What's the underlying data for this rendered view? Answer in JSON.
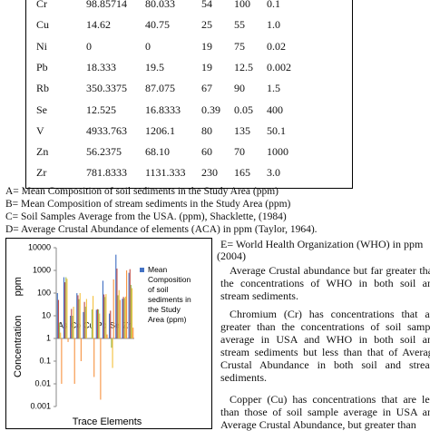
{
  "table": {
    "rows": [
      [
        "Cr",
        "98.85714",
        "80.033",
        "54",
        "100",
        "0.1"
      ],
      [
        "Cu",
        "14.62",
        "40.75",
        "25",
        "55",
        "1.0"
      ],
      [
        "Ni",
        "0",
        "0",
        "19",
        "75",
        "0.02"
      ],
      [
        "Pb",
        "18.333",
        "19.5",
        "19",
        "12.5",
        "0.002"
      ],
      [
        "Rb",
        "350.3375",
        "87.075",
        "67",
        "90",
        "1.5"
      ],
      [
        "Se",
        "12.525",
        "16.8333",
        "0.39",
        "0.05",
        "400"
      ],
      [
        "V",
        "4933.763",
        "1206.1",
        "80",
        "135",
        "50.1"
      ],
      [
        "Zn",
        "56.2375",
        "68.10",
        "60",
        "70",
        "1000"
      ],
      [
        "Zr",
        "781.8333",
        "1131.333",
        "230",
        "165",
        "3.0"
      ]
    ]
  },
  "captions": [
    "A= Mean Composition of soil sediments in the Study Area (ppm)",
    "B= Mean Composition of stream sediments in the Study Area (ppm)",
    "C= Soil Samples Average from the USA. (ppm), Shacklette, (1984)",
    "D= Average Crustal Abundance of elements (ACA) in ppm (Taylor, 1964)."
  ],
  "side_note": [
    "E= World Health Organization (WHO) in ppm",
    "(2004)"
  ],
  "paragraphs": [
    "Average Crustal abundance but far greater than the concentrations of WHO in both soil and stream sediments.",
    "Chromium (Cr) has concentrations that are greater than the concentrations of soil sample average in USA and WHO in both soil and stream sediments but less than that of Average Crustal Abundance in both soil and stream sediments.",
    "Copper (Cu) has concentrations that are less than those of soil sample average in USA and Average Crustal Abundance, but greater than"
  ],
  "chart_data": {
    "type": "bar",
    "ylabel": "Concentration ppm",
    "xlabel": "Trace Elements",
    "log_scale": true,
    "ylim": [
      0.001,
      10000
    ],
    "yticks": [
      0.001,
      0.01,
      0.1,
      1,
      10,
      100,
      1000,
      10000
    ],
    "categories": [
      "As",
      null,
      "Co",
      null,
      "Cu",
      null,
      "Pb",
      null,
      "Se",
      null,
      "Zn",
      null
    ],
    "series": [
      {
        "name": "Mean Composition of soil sediments in the Study Area (ppm)",
        "color": "#4472c4",
        "values": [
          100,
          500,
          10,
          98.9,
          14.6,
          null,
          18.3,
          350,
          12.5,
          4934,
          56,
          782
        ]
      },
      {
        "color": "#c0504d",
        "values": [
          50,
          300,
          20,
          80,
          40.8,
          null,
          19.5,
          87,
          16.8,
          1206,
          68,
          1131
        ]
      },
      {
        "color": "#9bbb59",
        "values": [
          5,
          500,
          10,
          54,
          25,
          19,
          19,
          67,
          0.39,
          80,
          60,
          230
        ]
      },
      {
        "color": "#f5c242",
        "values": [
          1.8,
          425,
          25,
          100,
          55,
          75,
          12.5,
          90,
          0.05,
          135,
          70,
          165
        ]
      },
      {
        "color": "#f79646",
        "values": [
          0.01,
          0.7,
          0.01,
          0.1,
          1,
          0.02,
          0.002,
          1.5,
          400,
          50,
          1000,
          3
        ]
      }
    ]
  }
}
